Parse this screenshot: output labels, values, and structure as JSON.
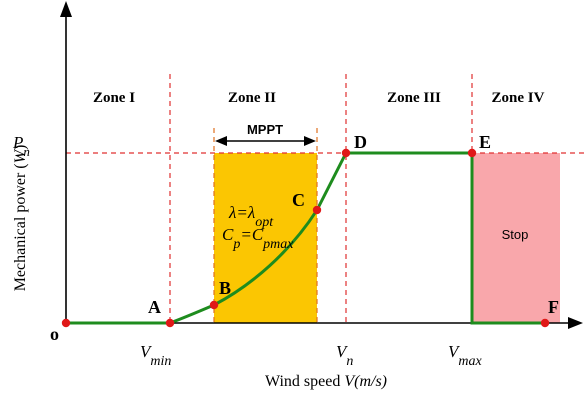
{
  "axes": {
    "y_label_main": "Mechanical power (",
    "y_label_unit": "W",
    "y_label_close": ")",
    "x_label_main": "Wind speed ",
    "x_label_unit": "V(m/s)",
    "origin": "o",
    "pn_base": "P",
    "pn_sub": "n",
    "vmin_base": "V",
    "vmin_sub": "min",
    "vn_base": "V",
    "vn_sub": "n",
    "vmax_base": "V",
    "vmax_sub": "max"
  },
  "zones": [
    "Zone I",
    "Zone II",
    "Zone III",
    "Zone IV"
  ],
  "points": [
    "A",
    "B",
    "C",
    "D",
    "E",
    "F"
  ],
  "mppt": "MPPT",
  "stop": "Stop",
  "eq1": {
    "a": "λ=λ",
    "sub": "opt"
  },
  "eq2": {
    "a": "C",
    "sub1": "p",
    "b": "=C",
    "sub2": "pmax"
  },
  "colors": {
    "mppt_region": "#fbc602",
    "stop_region": "#f9a7ab",
    "curve": "#1e8c1e",
    "guides": "#e03030",
    "points": "#e01818"
  }
}
